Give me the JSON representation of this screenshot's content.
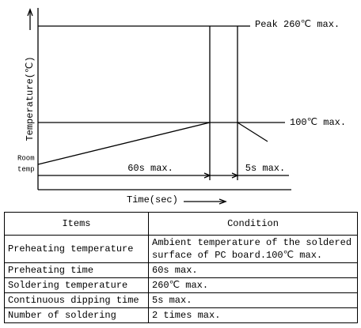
{
  "diagram": {
    "y_axis_label": "Temperature(℃)",
    "x_axis_label": "Time(sec)",
    "peak_label": "Peak 260℃ max.",
    "preheat_label": "100℃ max.",
    "room_temp_label": [
      "Room",
      "temp"
    ],
    "preheat_time_label": "60s max.",
    "dip_time_label": "5s max."
  },
  "table": {
    "header": [
      "Items",
      "Condition"
    ],
    "rows": [
      [
        "Preheating temperature",
        "Ambient temperature of the soldered surface of  PC board.100℃  max."
      ],
      [
        "Preheating time",
        "60s max."
      ],
      [
        "Soldering temperature",
        "260℃ max."
      ],
      [
        "Continuous dipping time",
        "5s max."
      ],
      [
        "Number of soldering",
        "2 times max."
      ]
    ]
  }
}
